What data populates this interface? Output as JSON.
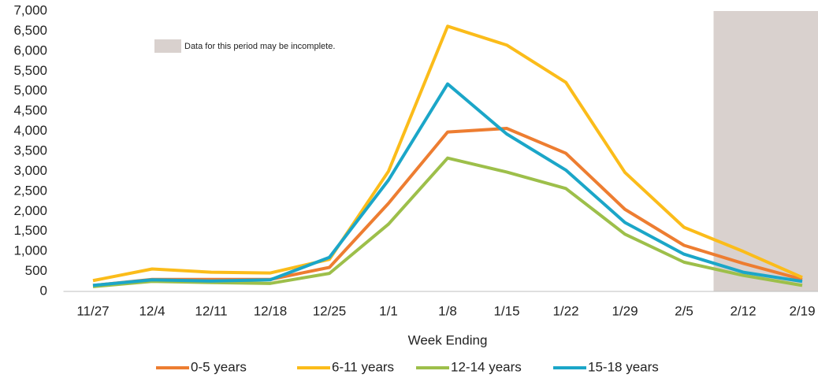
{
  "chart_data": {
    "type": "line",
    "x_label": "Week Ending",
    "categories": [
      "11/27",
      "12/4",
      "12/11",
      "12/18",
      "12/25",
      "1/1",
      "1/8",
      "1/15",
      "1/22",
      "1/29",
      "2/5",
      "2/12",
      "2/19"
    ],
    "series": [
      {
        "name": "0-5 years",
        "color": "#ed7d31",
        "values": [
          150,
          300,
          300,
          300,
          600,
          2200,
          3980,
          4070,
          3450,
          2050,
          1150,
          700,
          300
        ]
      },
      {
        "name": "6-11 years",
        "color": "#fbbc1a",
        "values": [
          270,
          560,
          480,
          460,
          800,
          3000,
          6620,
          6150,
          5220,
          2970,
          1600,
          1000,
          350
        ]
      },
      {
        "name": "12-14 years",
        "color": "#9dbf4a",
        "values": [
          120,
          250,
          220,
          200,
          450,
          1680,
          3330,
          2980,
          2570,
          1430,
          730,
          400,
          150
        ]
      },
      {
        "name": "15-18 years",
        "color": "#1ba6c8",
        "values": [
          150,
          290,
          260,
          290,
          850,
          2780,
          5180,
          3930,
          3030,
          1720,
          930,
          480,
          250
        ]
      }
    ],
    "ylim": [
      0,
      7000
    ],
    "yticks": [
      0,
      500,
      {
        "value": 1000,
        "label": "1,000"
      },
      {
        "value": 1500,
        "label": "1,500"
      },
      {
        "value": 2000,
        "label": "2,000"
      },
      {
        "value": 2500,
        "label": "2,500"
      },
      {
        "value": 3000,
        "label": "3,000"
      },
      {
        "value": 3500,
        "label": "3,500"
      },
      {
        "value": 4000,
        "label": "4,000"
      },
      {
        "value": 4500,
        "label": "4,500"
      },
      {
        "value": 5000,
        "label": "5,000"
      },
      {
        "value": 5500,
        "label": "5,500"
      },
      {
        "value": 6000,
        "label": "6,000"
      },
      {
        "value": 6500,
        "label": "6,500"
      },
      {
        "value": 7000,
        "label": "7,000"
      }
    ],
    "shade": {
      "label": "Data for this period may be incomplete.",
      "from": "2/12",
      "color": "#d9d1ce"
    },
    "legend": "bottom"
  }
}
